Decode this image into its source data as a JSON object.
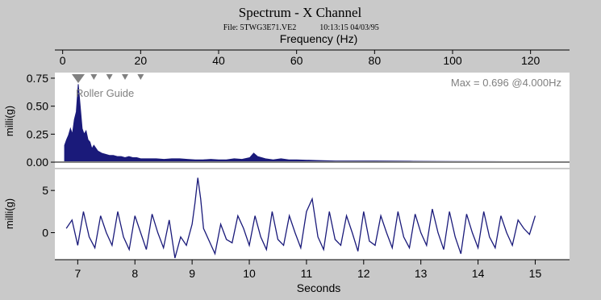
{
  "header": {
    "title": "Spectrum - X Channel",
    "file_label": "File: 5TWG3E71.VE2",
    "timestamp": "10:13:15 04/03/95"
  },
  "colors": {
    "background": "#c9c9c9",
    "plot_background": "#ffffff",
    "trace": "#1a1a7a",
    "marker": "#808080",
    "annotation": "#808080"
  },
  "chart_data": [
    {
      "type": "area",
      "title": "Spectrum - X Channel",
      "xlabel": "Frequency (Hz)",
      "ylabel": "milli(g)",
      "xlim": [
        -2,
        130
      ],
      "ylim": [
        -0.05,
        0.8
      ],
      "x_ticks": [
        0,
        20,
        40,
        60,
        80,
        100,
        120
      ],
      "x_tick_labels": [
        "0",
        "20",
        "40",
        "60",
        "80",
        "100",
        "120"
      ],
      "y_ticks": [
        0.0,
        0.25,
        0.5,
        0.75
      ],
      "y_tick_labels": [
        "0.00",
        "0.25",
        "0.50",
        "0.75"
      ],
      "axis_position": "top",
      "grid": false,
      "annotations": {
        "max_label": "Max = 0.696 @4.000Hz",
        "marker_label": "Roller Guide",
        "marker_frequencies_hz": [
          4.0,
          8.0,
          12.0,
          16.0,
          20.0
        ],
        "peak": {
          "x": 4.0,
          "y": 0.696
        }
      },
      "series": [
        {
          "x": [
            0.5,
            1,
            1.5,
            2,
            2.5,
            3,
            3.5,
            4,
            4.5,
            5,
            5.5,
            6,
            6.5,
            7,
            7.5,
            8,
            9,
            10,
            11,
            12,
            13,
            14,
            15,
            16,
            17,
            18,
            19,
            20,
            22,
            24,
            26,
            28,
            30,
            32,
            34,
            36,
            38,
            40,
            42,
            44,
            46,
            48,
            49,
            50,
            52,
            54,
            56,
            58,
            60,
            65,
            70,
            75,
            80,
            90,
            100,
            110,
            120,
            127
          ],
          "values": [
            0.15,
            0.2,
            0.24,
            0.3,
            0.25,
            0.38,
            0.45,
            0.696,
            0.5,
            0.3,
            0.25,
            0.28,
            0.2,
            0.18,
            0.12,
            0.15,
            0.1,
            0.08,
            0.07,
            0.06,
            0.06,
            0.05,
            0.05,
            0.04,
            0.05,
            0.04,
            0.04,
            0.03,
            0.03,
            0.03,
            0.025,
            0.03,
            0.03,
            0.025,
            0.02,
            0.02,
            0.025,
            0.02,
            0.02,
            0.03,
            0.025,
            0.04,
            0.08,
            0.05,
            0.03,
            0.02,
            0.03,
            0.02,
            0.02,
            0.015,
            0.01,
            0.01,
            0.01,
            0.008,
            0.006,
            0.005,
            0.004,
            0.0
          ]
        }
      ]
    },
    {
      "type": "line",
      "xlabel": "Seconds",
      "ylabel": "milli(g)",
      "xlim": [
        6.6,
        15.6
      ],
      "ylim": [
        -3.2,
        7.5
      ],
      "x_ticks": [
        7,
        8,
        9,
        10,
        11,
        12,
        13,
        14,
        15
      ],
      "x_tick_labels": [
        "7",
        "8",
        "9",
        "10",
        "11",
        "12",
        "13",
        "14",
        "15"
      ],
      "y_ticks": [
        0,
        5
      ],
      "y_tick_labels": [
        "0",
        "5"
      ],
      "grid": false,
      "series": [
        {
          "x": [
            6.8,
            6.9,
            7.0,
            7.1,
            7.2,
            7.3,
            7.4,
            7.5,
            7.6,
            7.7,
            7.8,
            7.9,
            8.0,
            8.1,
            8.2,
            8.3,
            8.4,
            8.5,
            8.6,
            8.7,
            8.8,
            8.9,
            9.0,
            9.05,
            9.1,
            9.15,
            9.2,
            9.3,
            9.4,
            9.5,
            9.6,
            9.7,
            9.8,
            9.9,
            10.0,
            10.1,
            10.2,
            10.3,
            10.4,
            10.5,
            10.6,
            10.7,
            10.8,
            10.9,
            11.0,
            11.1,
            11.2,
            11.3,
            11.4,
            11.5,
            11.6,
            11.7,
            11.8,
            11.9,
            12.0,
            12.1,
            12.2,
            12.3,
            12.4,
            12.5,
            12.6,
            12.7,
            12.8,
            12.9,
            13.0,
            13.1,
            13.2,
            13.3,
            13.4,
            13.5,
            13.6,
            13.7,
            13.8,
            13.9,
            14.0,
            14.1,
            14.2,
            14.3,
            14.4,
            14.5,
            14.6,
            14.7,
            14.8,
            14.9,
            15.0
          ],
          "values": [
            0.5,
            1.5,
            -1.5,
            2.5,
            -0.5,
            -1.8,
            2.0,
            0.0,
            -1.5,
            2.5,
            -0.5,
            -2.0,
            2.0,
            0.0,
            -2.0,
            2.2,
            0.0,
            -1.8,
            1.5,
            -3.0,
            -0.5,
            -1.5,
            1.0,
            3.5,
            6.5,
            4.0,
            0.5,
            -1.0,
            -2.5,
            1.0,
            -0.8,
            -1.2,
            2.0,
            0.5,
            -1.5,
            2.0,
            -0.5,
            -2.0,
            2.5,
            -0.8,
            -1.5,
            2.0,
            0.0,
            -1.8,
            2.5,
            4.0,
            -0.5,
            -2.0,
            2.5,
            -0.8,
            -1.5,
            2.0,
            0.0,
            -2.2,
            2.5,
            -1.0,
            -1.5,
            2.0,
            0.0,
            -1.8,
            2.5,
            -0.5,
            -1.8,
            2.2,
            0.0,
            -1.5,
            2.8,
            0.0,
            -2.0,
            2.5,
            -0.5,
            -2.5,
            2.2,
            0.0,
            -1.8,
            2.5,
            -0.5,
            -1.8,
            2.0,
            0.0,
            -1.5,
            1.5,
            0.5,
            -0.2,
            2.0
          ]
        }
      ]
    }
  ]
}
